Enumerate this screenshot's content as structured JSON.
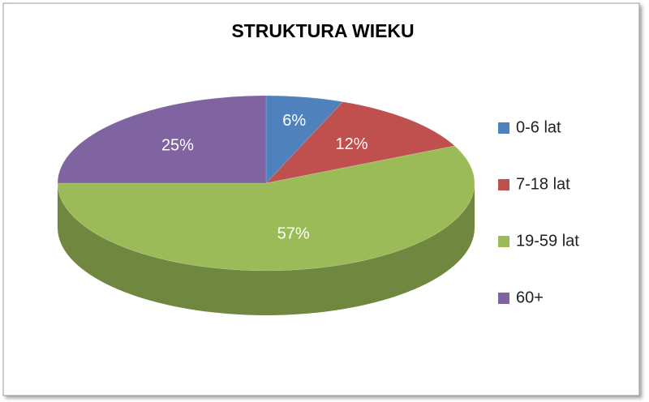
{
  "chart_data": {
    "type": "pie3d",
    "title": "STRUKTURA WIEKU",
    "categories": [
      "0-6 lat",
      "7-18 lat",
      "19-59 lat",
      "60+"
    ],
    "values": [
      6,
      12,
      57,
      25
    ],
    "value_labels": [
      "6%",
      "12%",
      "57%",
      "25%"
    ],
    "colors": [
      "#4f81bd",
      "#c0504d",
      "#9bbb59",
      "#8064a2"
    ],
    "legend": "right"
  }
}
